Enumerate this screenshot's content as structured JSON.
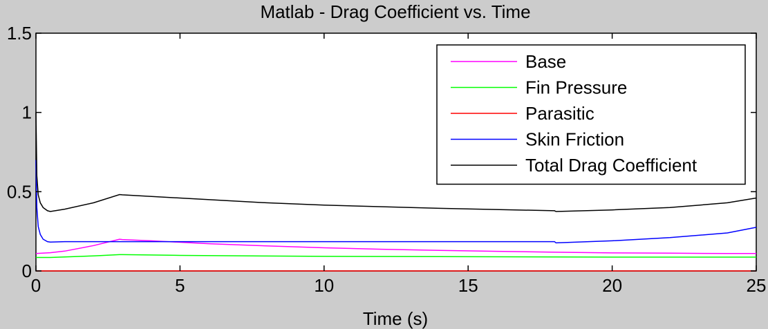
{
  "chart_data": {
    "type": "line",
    "title": "Matlab - Drag Coefficient vs. Time",
    "xlabel": "Time (s)",
    "ylabel": "",
    "xlim": [
      0,
      25
    ],
    "ylim": [
      0,
      1.5
    ],
    "x_ticks": [
      0,
      5,
      10,
      15,
      20,
      25
    ],
    "y_ticks": [
      0,
      0.5,
      1,
      1.5
    ],
    "x_tick_labels": [
      "0",
      "5",
      "10",
      "15",
      "20",
      "25"
    ],
    "y_tick_labels": [
      "0",
      "0.5",
      "1",
      "1.5"
    ],
    "grid": false,
    "legend_position": "top-right",
    "series": [
      {
        "name": "Base",
        "color": "#ff00ff",
        "x": [
          0,
          0.5,
          1,
          2,
          2.9,
          3,
          4,
          6,
          8,
          10,
          12,
          14,
          16,
          18,
          20,
          22,
          24,
          25
        ],
        "y": [
          0.11,
          0.115,
          0.125,
          0.16,
          0.2,
          0.198,
          0.19,
          0.172,
          0.158,
          0.146,
          0.137,
          0.13,
          0.124,
          0.118,
          0.114,
          0.112,
          0.11,
          0.11
        ]
      },
      {
        "name": "Fin Pressure",
        "color": "#00ff00",
        "x": [
          0,
          0.5,
          1,
          2,
          2.9,
          3,
          5,
          8,
          10,
          15,
          18,
          20,
          25
        ],
        "y": [
          0.085,
          0.085,
          0.088,
          0.095,
          0.103,
          0.103,
          0.098,
          0.094,
          0.092,
          0.09,
          0.088,
          0.087,
          0.087
        ]
      },
      {
        "name": "Parasitic",
        "color": "#ff0000",
        "x": [
          0,
          25
        ],
        "y": [
          0,
          0
        ]
      },
      {
        "name": "Skin Friction",
        "color": "#0000ff",
        "x": [
          0,
          0.03,
          0.08,
          0.15,
          0.25,
          0.4,
          0.5,
          1,
          5,
          10,
          15,
          18,
          18.05,
          20,
          22,
          24,
          25
        ],
        "y": [
          0.7,
          0.4,
          0.28,
          0.23,
          0.2,
          0.185,
          0.182,
          0.185,
          0.185,
          0.185,
          0.185,
          0.185,
          0.177,
          0.19,
          0.21,
          0.24,
          0.275
        ]
      },
      {
        "name": "Total Drag Coefficient",
        "color": "#000000",
        "x": [
          0,
          0.03,
          0.08,
          0.15,
          0.25,
          0.4,
          0.5,
          1,
          2,
          2.9,
          3,
          5,
          8,
          10,
          14,
          18,
          18.05,
          20,
          22,
          24,
          25
        ],
        "y": [
          1.0,
          0.6,
          0.48,
          0.43,
          0.4,
          0.38,
          0.375,
          0.39,
          0.43,
          0.482,
          0.48,
          0.46,
          0.43,
          0.415,
          0.395,
          0.38,
          0.375,
          0.385,
          0.4,
          0.43,
          0.46
        ]
      }
    ]
  }
}
